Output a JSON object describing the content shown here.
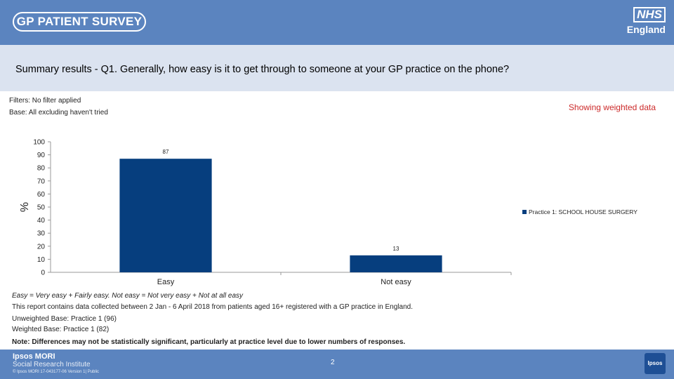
{
  "header": {
    "survey_logo": "GP PATIENT SURVEY",
    "nhs_logo": "NHS",
    "nhs_region": "England"
  },
  "title": "Summary results - Q1.  Generally, how easy is it to get through to someone at your GP practice on the phone?",
  "filters": "Filters: No filter applied",
  "base": "Base: All excluding haven't tried",
  "weighted_label": "Showing weighted data",
  "chart_data": {
    "type": "bar",
    "categories": [
      "Easy",
      "Not easy"
    ],
    "series": [
      {
        "name": "Practice 1: SCHOOL HOUSE SURGERY",
        "values": [
          87,
          13
        ],
        "color": "#063e7e"
      }
    ],
    "data_labels": [
      "87",
      "13"
    ],
    "ylabel": "%",
    "ylim": [
      0,
      100
    ],
    "yticks": [
      0,
      10,
      20,
      30,
      40,
      50,
      60,
      70,
      80,
      90,
      100
    ],
    "grid": false,
    "legend": "right"
  },
  "notes": {
    "definition": "Easy = Very easy + Fairly easy. Not easy = Not very easy + Not at all easy",
    "report": "This report contains data collected between 2 Jan - 6 April 2018 from patients aged 16+ registered with a GP practice in England.",
    "unweighted": "Unweighted Base: Practice 1 (96)",
    "weighted": "Weighted Base: Practice 1 (82)",
    "note": "Note: Differences may not be statistically significant, particularly at practice level due to lower numbers of responses."
  },
  "footer": {
    "brand": "Ipsos MORI",
    "sub": "Social Research Institute",
    "copyright": "© Ipsos MORI     17-043177-06 Version 1| Public",
    "page": "2",
    "badge": "Ipsos"
  }
}
